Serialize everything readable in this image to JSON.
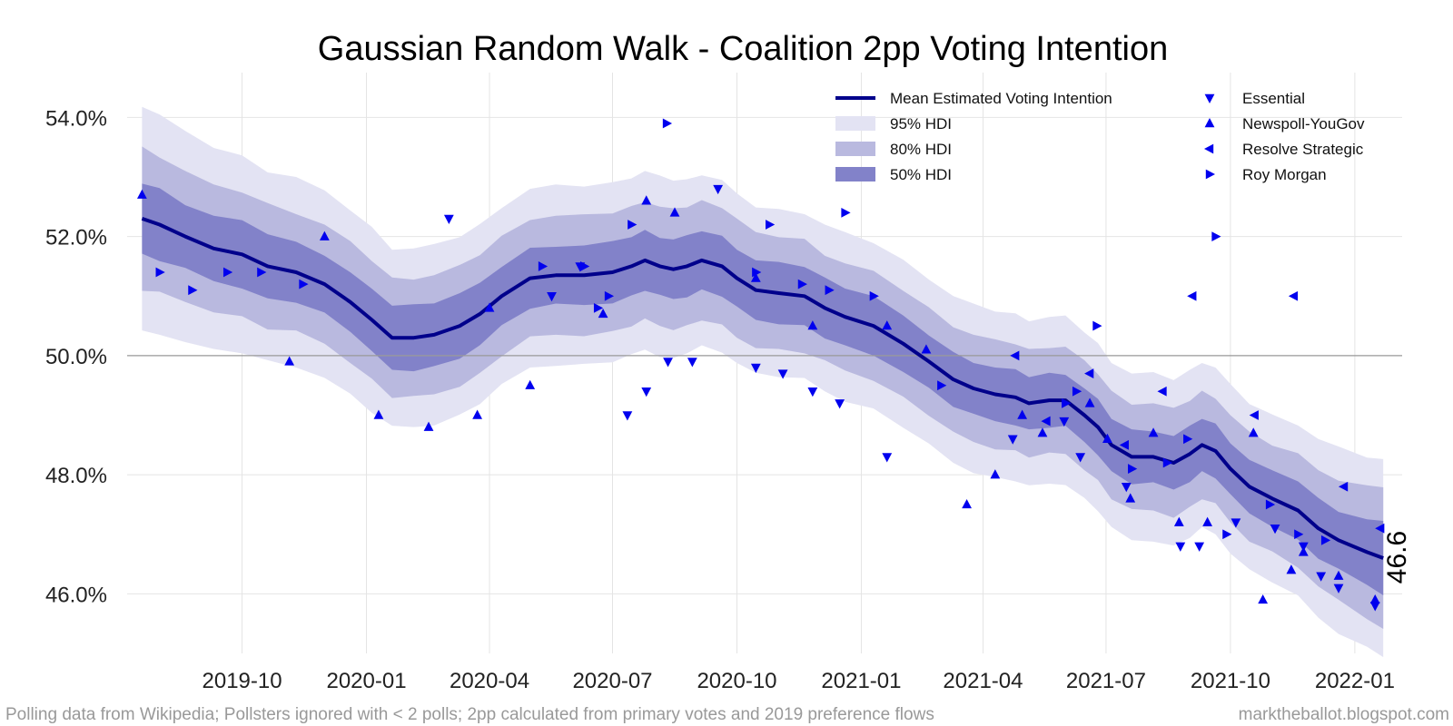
{
  "chart_data": {
    "type": "line",
    "title": "Gaussian Random Walk - Coalition 2pp Voting Intention",
    "xlabel": "",
    "ylabel": "",
    "ylim": [
      45.0,
      54.6
    ],
    "xlim": [
      "2019-07-08",
      "2022-02-05"
    ],
    "y_ticks": [
      46,
      48,
      50,
      52,
      54
    ],
    "y_tick_labels": [
      "46.0%",
      "48.0%",
      "50.0%",
      "52.0%",
      "54.0%"
    ],
    "x_ticks": [
      "2019-10-01",
      "2020-01-01",
      "2020-04-01",
      "2020-07-01",
      "2020-10-01",
      "2021-01-01",
      "2021-04-01",
      "2021-07-01",
      "2021-10-01",
      "2022-01-01"
    ],
    "x_tick_labels": [
      "2019-10",
      "2020-01",
      "2020-04",
      "2020-07",
      "2020-10",
      "2021-01",
      "2021-04",
      "2021-07",
      "2021-10",
      "2022-01"
    ],
    "reference_line": 50.0,
    "grid": true,
    "legend_position": "top-right",
    "legend": {
      "col1": [
        "Mean Estimated Voting Intention",
        "95% HDI",
        "80% HDI",
        "50% HDI"
      ],
      "col2": [
        "Essential",
        "Newspoll-YouGov",
        "Resolve Strategic",
        "Roy Morgan"
      ]
    },
    "mean_series": {
      "name": "Mean Estimated Voting Intention",
      "x": [
        "2019-07-19",
        "2019-08-01",
        "2019-08-20",
        "2019-09-10",
        "2019-10-01",
        "2019-10-20",
        "2019-11-10",
        "2019-12-01",
        "2019-12-20",
        "2020-01-05",
        "2020-01-20",
        "2020-02-05",
        "2020-02-20",
        "2020-03-10",
        "2020-03-25",
        "2020-04-10",
        "2020-05-01",
        "2020-05-20",
        "2020-06-10",
        "2020-07-01",
        "2020-07-15",
        "2020-07-25",
        "2020-08-05",
        "2020-08-15",
        "2020-08-25",
        "2020-09-05",
        "2020-09-20",
        "2020-10-01",
        "2020-10-15",
        "2020-11-01",
        "2020-11-20",
        "2020-12-05",
        "2020-12-20",
        "2021-01-10",
        "2021-02-01",
        "2021-02-20",
        "2021-03-10",
        "2021-03-25",
        "2021-04-10",
        "2021-04-25",
        "2021-05-05",
        "2021-05-20",
        "2021-06-01",
        "2021-06-15",
        "2021-06-25",
        "2021-07-05",
        "2021-07-20",
        "2021-08-05",
        "2021-08-20",
        "2021-09-01",
        "2021-09-10",
        "2021-09-20",
        "2021-10-01",
        "2021-10-15",
        "2021-11-01",
        "2021-11-20",
        "2021-12-05",
        "2021-12-20",
        "2022-01-10",
        "2022-01-22"
      ],
      "values": [
        52.3,
        52.2,
        52.0,
        51.8,
        51.7,
        51.5,
        51.4,
        51.2,
        50.9,
        50.6,
        50.3,
        50.3,
        50.35,
        50.5,
        50.7,
        51.0,
        51.3,
        51.35,
        51.35,
        51.4,
        51.5,
        51.6,
        51.5,
        51.45,
        51.5,
        51.6,
        51.5,
        51.3,
        51.1,
        51.05,
        51.0,
        50.8,
        50.65,
        50.5,
        50.2,
        49.9,
        49.6,
        49.45,
        49.35,
        49.3,
        49.2,
        49.25,
        49.25,
        49.0,
        48.8,
        48.5,
        48.3,
        48.3,
        48.2,
        48.35,
        48.5,
        48.4,
        48.1,
        47.8,
        47.6,
        47.4,
        47.1,
        46.9,
        46.7,
        46.6
      ]
    },
    "hdi": {
      "50": {
        "half_width": [
          0.6,
          0.6,
          0.55,
          0.55,
          0.55,
          0.55,
          0.5,
          0.5,
          0.5,
          0.5,
          0.55,
          0.55,
          0.55,
          0.55,
          0.5,
          0.5,
          0.5,
          0.5,
          0.5,
          0.5,
          0.5,
          0.5,
          0.5,
          0.5,
          0.5,
          0.5,
          0.5,
          0.5,
          0.5,
          0.5,
          0.5,
          0.5,
          0.5,
          0.5,
          0.45,
          0.45,
          0.45,
          0.45,
          0.45,
          0.45,
          0.45,
          0.45,
          0.45,
          0.45,
          0.45,
          0.45,
          0.45,
          0.45,
          0.45,
          0.45,
          0.45,
          0.45,
          0.45,
          0.45,
          0.45,
          0.5,
          0.5,
          0.5,
          0.55,
          0.6
        ]
      },
      "80": {
        "half_width": [
          1.2,
          1.15,
          1.1,
          1.05,
          1.05,
          1.05,
          1.0,
          1.0,
          1.0,
          1.0,
          1.0,
          1.0,
          1.0,
          1.0,
          1.0,
          1.0,
          1.0,
          1.0,
          1.0,
          1.0,
          1.0,
          1.0,
          1.0,
          1.0,
          1.0,
          1.0,
          1.0,
          1.0,
          0.95,
          0.95,
          0.95,
          0.9,
          0.9,
          0.9,
          0.9,
          0.9,
          0.9,
          0.9,
          0.9,
          0.9,
          0.9,
          0.9,
          0.9,
          0.9,
          0.9,
          0.9,
          0.9,
          0.9,
          0.9,
          0.9,
          0.9,
          0.9,
          0.9,
          0.9,
          0.9,
          0.95,
          1.0,
          1.0,
          1.1,
          1.2
        ]
      },
      "95": {
        "half_width": [
          1.9,
          1.85,
          1.75,
          1.7,
          1.65,
          1.6,
          1.6,
          1.55,
          1.55,
          1.55,
          1.5,
          1.5,
          1.5,
          1.5,
          1.5,
          1.5,
          1.5,
          1.5,
          1.5,
          1.5,
          1.5,
          1.5,
          1.5,
          1.5,
          1.45,
          1.45,
          1.45,
          1.4,
          1.4,
          1.4,
          1.4,
          1.4,
          1.4,
          1.4,
          1.4,
          1.4,
          1.4,
          1.4,
          1.4,
          1.4,
          1.4,
          1.4,
          1.4,
          1.4,
          1.4,
          1.4,
          1.4,
          1.4,
          1.4,
          1.4,
          1.4,
          1.4,
          1.4,
          1.4,
          1.4,
          1.45,
          1.5,
          1.55,
          1.6,
          1.65
        ]
      }
    },
    "polls": [
      {
        "pollster": "Essential",
        "marker": "down",
        "points": [
          [
            "2020-03-02",
            52.3
          ],
          [
            "2020-05-17",
            51.0
          ],
          [
            "2020-06-07",
            51.5
          ],
          [
            "2020-07-12",
            49.0
          ],
          [
            "2020-07-26",
            49.4
          ],
          [
            "2020-08-11",
            49.9
          ],
          [
            "2020-08-29",
            49.9
          ],
          [
            "2020-09-17",
            52.8
          ],
          [
            "2020-10-15",
            49.8
          ],
          [
            "2020-11-04",
            49.7
          ],
          [
            "2020-11-26",
            49.4
          ],
          [
            "2020-12-16",
            49.2
          ],
          [
            "2021-01-20",
            48.3
          ],
          [
            "2021-04-23",
            48.6
          ],
          [
            "2021-05-31",
            48.9
          ],
          [
            "2021-06-12",
            48.3
          ],
          [
            "2021-07-16",
            47.8
          ],
          [
            "2021-08-25",
            46.8
          ],
          [
            "2021-09-08",
            46.8
          ],
          [
            "2021-10-05",
            47.2
          ],
          [
            "2021-11-03",
            47.1
          ],
          [
            "2021-11-24",
            46.8
          ],
          [
            "2021-12-07",
            46.3
          ],
          [
            "2021-12-20",
            46.1
          ],
          [
            "2022-01-16",
            45.8
          ]
        ]
      },
      {
        "pollster": "Newspoll-YouGov",
        "marker": "up",
        "points": [
          [
            "2019-07-19",
            52.7
          ],
          [
            "2019-12-01",
            52.0
          ],
          [
            "2019-11-05",
            49.9
          ],
          [
            "2020-01-10",
            49.0
          ],
          [
            "2020-02-16",
            48.8
          ],
          [
            "2020-03-23",
            49.0
          ],
          [
            "2020-04-01",
            50.8
          ],
          [
            "2020-05-01",
            49.5
          ],
          [
            "2020-06-24",
            50.7
          ],
          [
            "2020-07-26",
            52.6
          ],
          [
            "2020-08-16",
            52.4
          ],
          [
            "2020-10-15",
            51.3
          ],
          [
            "2020-11-26",
            50.5
          ],
          [
            "2021-01-20",
            50.5
          ],
          [
            "2021-02-18",
            50.1
          ],
          [
            "2021-03-20",
            47.5
          ],
          [
            "2021-04-10",
            48.0
          ],
          [
            "2021-04-30",
            49.0
          ],
          [
            "2021-05-15",
            48.7
          ],
          [
            "2021-06-19",
            49.2
          ],
          [
            "2021-07-02",
            48.6
          ],
          [
            "2021-07-19",
            47.6
          ],
          [
            "2021-08-05",
            48.7
          ],
          [
            "2021-08-24",
            47.2
          ],
          [
            "2021-09-14",
            47.2
          ],
          [
            "2021-10-18",
            48.7
          ],
          [
            "2021-10-25",
            45.9
          ],
          [
            "2021-11-15",
            46.4
          ],
          [
            "2021-11-24",
            46.7
          ],
          [
            "2021-12-20",
            46.3
          ],
          [
            "2022-01-16",
            45.9
          ]
        ]
      },
      {
        "pollster": "Resolve Strategic",
        "marker": "left",
        "points": [
          [
            "2021-04-25",
            50.0
          ],
          [
            "2021-05-18",
            48.9
          ],
          [
            "2021-06-19",
            49.7
          ],
          [
            "2021-07-15",
            48.5
          ],
          [
            "2021-08-12",
            49.4
          ],
          [
            "2021-09-03",
            51.0
          ],
          [
            "2021-10-19",
            49.0
          ],
          [
            "2021-11-17",
            51.0
          ],
          [
            "2021-12-24",
            47.8
          ],
          [
            "2022-01-20",
            47.1
          ]
        ]
      },
      {
        "pollster": "Roy Morgan",
        "marker": "right",
        "points": [
          [
            "2019-08-01",
            51.4
          ],
          [
            "2019-08-25",
            51.1
          ],
          [
            "2019-09-20",
            51.4
          ],
          [
            "2019-10-15",
            51.4
          ],
          [
            "2019-11-15",
            51.2
          ],
          [
            "2020-05-10",
            51.5
          ],
          [
            "2020-06-10",
            51.5
          ],
          [
            "2020-06-20",
            50.8
          ],
          [
            "2020-06-28",
            51.0
          ],
          [
            "2020-07-15",
            52.2
          ],
          [
            "2020-08-10",
            53.9
          ],
          [
            "2020-10-15",
            51.4
          ],
          [
            "2020-10-25",
            52.2
          ],
          [
            "2020-11-18",
            51.2
          ],
          [
            "2020-12-08",
            51.1
          ],
          [
            "2020-12-20",
            52.4
          ],
          [
            "2021-01-10",
            51.0
          ],
          [
            "2021-03-01",
            49.5
          ],
          [
            "2021-06-01",
            49.2
          ],
          [
            "2021-06-09",
            49.4
          ],
          [
            "2021-06-24",
            50.5
          ],
          [
            "2021-07-20",
            48.1
          ],
          [
            "2021-08-15",
            48.2
          ],
          [
            "2021-08-30",
            48.6
          ],
          [
            "2021-09-20",
            52.0
          ],
          [
            "2021-09-28",
            47.0
          ],
          [
            "2021-10-30",
            47.5
          ],
          [
            "2021-11-20",
            47.0
          ],
          [
            "2021-12-10",
            46.9
          ]
        ]
      }
    ],
    "end_label": "46.6"
  },
  "footer": {
    "left": "Polling data from Wikipedia; Pollsters ignored with < 2 polls; 2pp calculated from primary votes and 2019 preference flows",
    "right": "marktheballot.blogspot.com"
  },
  "colors": {
    "mean_line": "#00008b",
    "hdi95": "#e3e3f3",
    "hdi80": "#b9b9df",
    "hdi50": "#8282c9",
    "poll_marker": "#0000ee",
    "grid": "#e4e4e4",
    "ref_line": "#999999"
  }
}
